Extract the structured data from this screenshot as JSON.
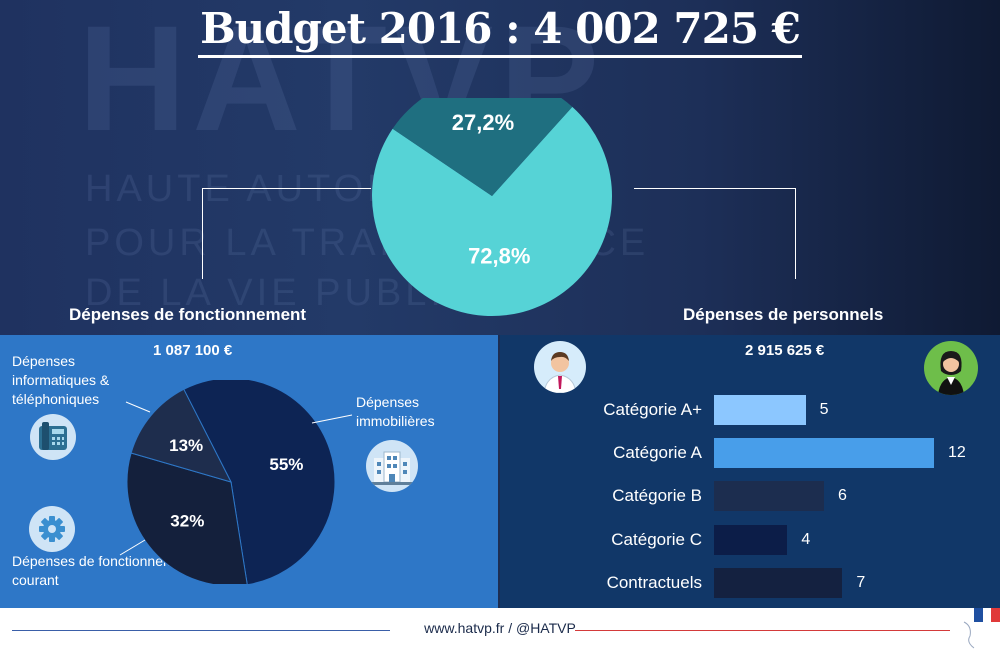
{
  "title": "Budget 2016 : 4 002 725 €",
  "colors": {
    "main_pie_personnel": "#56d3d6",
    "main_pie_fonctionnement": "#1f6f80",
    "pie_immobilieres": "#0d2454",
    "pie_courant": "#14203c",
    "pie_informatiques": "#1e2d4d",
    "bar_cat_a_plus": "#8cc7ff",
    "bar_cat_a": "#489eea",
    "bar_cat_b": "#1c2d4f",
    "bar_cat_c": "#0c1d48",
    "bar_contractuels": "#142140"
  },
  "fonctionnement": {
    "title": "Dépenses de fonctionnement",
    "amount": "1 087 100 €",
    "labels": {
      "informatiques": "Dépenses informatiques & téléphoniques",
      "immobilieres": "Dépenses immobilières",
      "courant": "Dépenses de fonctionnement courant"
    },
    "icons": {
      "informatiques": "telephone-icon",
      "immobilieres": "building-icon",
      "courant": "gear-icon"
    }
  },
  "personnel": {
    "title": "Dépenses de personnels",
    "amount": "2 915 625 €",
    "icons": {
      "male": "male-agent-avatar-icon",
      "female": "female-agent-avatar-icon"
    }
  },
  "footer": {
    "text": "www.hatvp.fr / @HATVP"
  },
  "chart_data": [
    {
      "type": "pie",
      "title": "Budget 2016 : 4 002 725 €",
      "categories": [
        "Dépenses de personnels",
        "Dépenses de fonctionnement"
      ],
      "values": [
        72.8,
        27.2
      ],
      "data_labels": [
        "72,8%",
        "27,2%"
      ]
    },
    {
      "type": "pie",
      "title": "Dépenses de fonctionnement",
      "categories": [
        "Dépenses immobilières",
        "Dépenses de fonctionnement courant",
        "Dépenses informatiques & téléphoniques"
      ],
      "values": [
        55,
        32,
        13
      ],
      "data_labels": [
        "55%",
        "32%",
        "13%"
      ]
    },
    {
      "type": "bar",
      "orientation": "horizontal",
      "title": "Dépenses de personnels",
      "categories": [
        "Catégorie A+",
        "Catégorie A",
        "Catégorie B",
        "Catégorie C",
        "Contractuels"
      ],
      "values": [
        5,
        12,
        6,
        4,
        7
      ],
      "xlim": [
        0,
        12
      ]
    }
  ]
}
